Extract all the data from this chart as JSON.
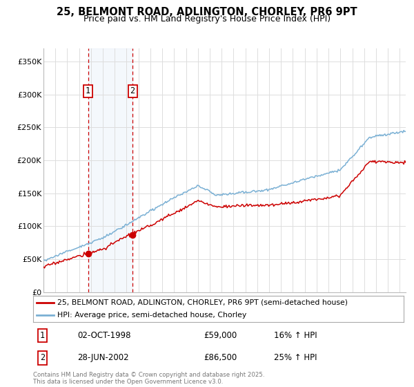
{
  "title_line1": "25, BELMONT ROAD, ADLINGTON, CHORLEY, PR6 9PT",
  "title_line2": "Price paid vs. HM Land Registry's House Price Index (HPI)",
  "legend_line1": "25, BELMONT ROAD, ADLINGTON, CHORLEY, PR6 9PT (semi-detached house)",
  "legend_line2": "HPI: Average price, semi-detached house, Chorley",
  "footnote": "Contains HM Land Registry data © Crown copyright and database right 2025.\nThis data is licensed under the Open Government Licence v3.0.",
  "transaction1_label": "1",
  "transaction1_date": "02-OCT-1998",
  "transaction1_price": "£59,000",
  "transaction1_hpi": "16% ↑ HPI",
  "transaction2_label": "2",
  "transaction2_date": "28-JUN-2002",
  "transaction2_price": "£86,500",
  "transaction2_hpi": "25% ↑ HPI",
  "transaction1_x": 1998.75,
  "transaction1_y": 59000,
  "transaction2_x": 2002.5,
  "transaction2_y": 86500,
  "ylim": [
    0,
    370000
  ],
  "yticks": [
    0,
    50000,
    100000,
    150000,
    200000,
    250000,
    300000,
    350000
  ],
  "ytick_labels": [
    "£0",
    "£50K",
    "£100K",
    "£150K",
    "£200K",
    "£250K",
    "£300K",
    "£350K"
  ],
  "property_color": "#cc0000",
  "hpi_color": "#7ab0d4",
  "vline_color": "#cc0000",
  "background_color": "#ffffff",
  "grid_color": "#dddddd",
  "xlim_left": 1995.0,
  "xlim_right": 2025.5
}
